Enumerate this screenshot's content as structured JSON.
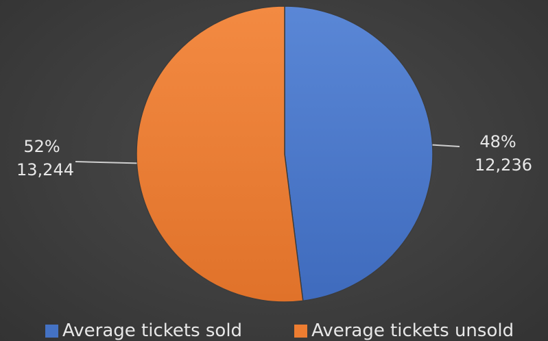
{
  "chart_data": {
    "type": "pie",
    "title": "",
    "categories": [
      "Average tickets sold",
      "Average tickets unsold"
    ],
    "values": [
      12236,
      13244
    ],
    "labels": [
      {
        "percent": "48%",
        "value": "12,236"
      },
      {
        "percent": "52%",
        "value": "13,244"
      }
    ],
    "colors": [
      "#4472C4",
      "#ED7D31"
    ],
    "start_angle": "12 o'clock",
    "direction": "clockwise",
    "legend": {
      "position": "bottom",
      "items": [
        "Average tickets sold",
        "Average tickets unsold"
      ]
    }
  }
}
